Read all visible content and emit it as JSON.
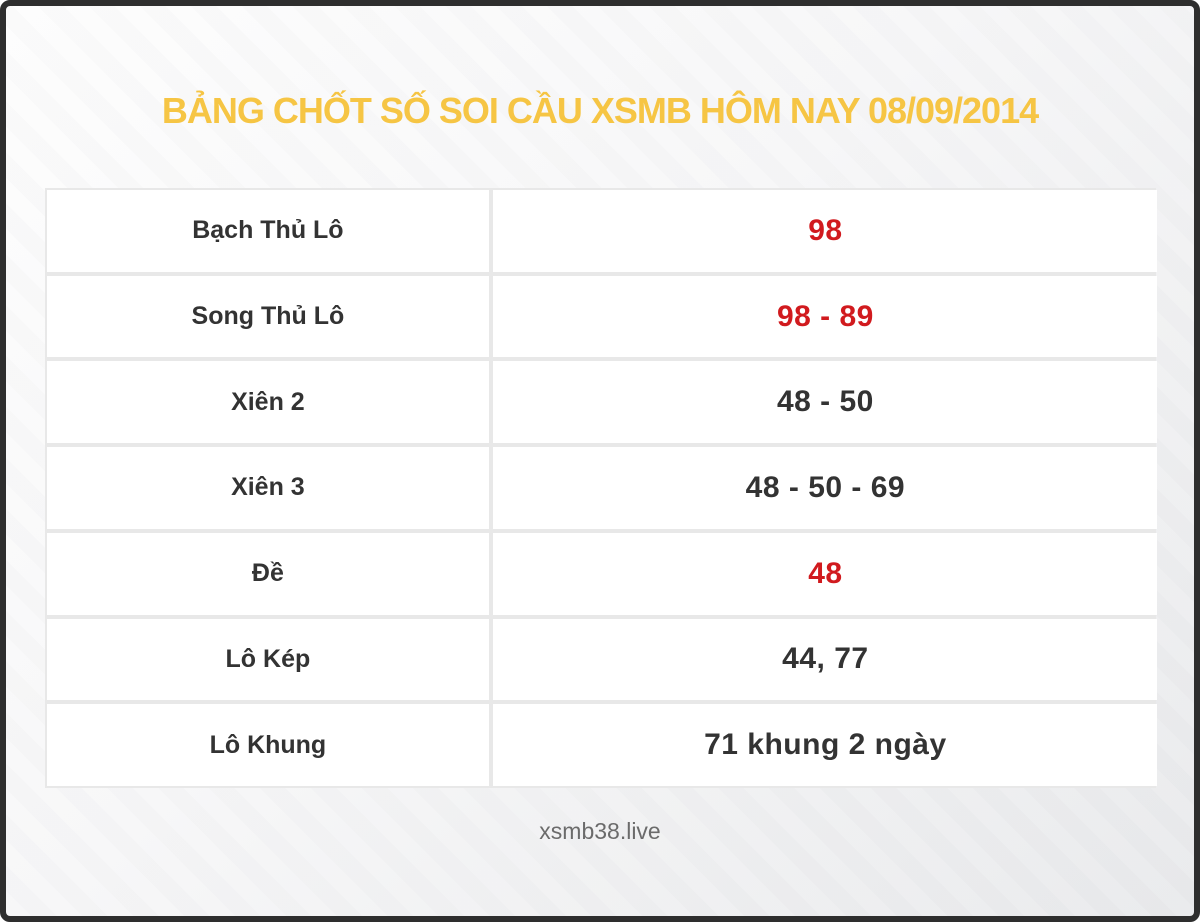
{
  "page": {
    "title": "BẢNG CHỐT SỐ SOI CẦU XSMB HÔM NAY 08/09/2014",
    "title_color": "#f6c544",
    "footer": "xsmb38.live",
    "footer_color": "#6b6b6b"
  },
  "colors": {
    "highlight_red": "#d11a1e",
    "value_dark": "#333333",
    "frame_border": "#2e2e2e",
    "grid_line": "#e8e8e8"
  },
  "table": {
    "rows": [
      {
        "label": "Bạch Thủ Lô",
        "value": "98",
        "color": "#d11a1e"
      },
      {
        "label": "Song Thủ Lô",
        "value": "98 - 89",
        "color": "#d11a1e"
      },
      {
        "label": "Xiên 2",
        "value": "48 - 50",
        "color": "#333333"
      },
      {
        "label": "Xiên 3",
        "value": "48 - 50 - 69",
        "color": "#333333"
      },
      {
        "label": "Đề",
        "value": "48",
        "color": "#d11a1e"
      },
      {
        "label": "Lô Kép",
        "value": "44, 77",
        "color": "#333333"
      },
      {
        "label": "Lô Khung",
        "value": "71 khung 2 ngày",
        "color": "#333333"
      }
    ]
  }
}
